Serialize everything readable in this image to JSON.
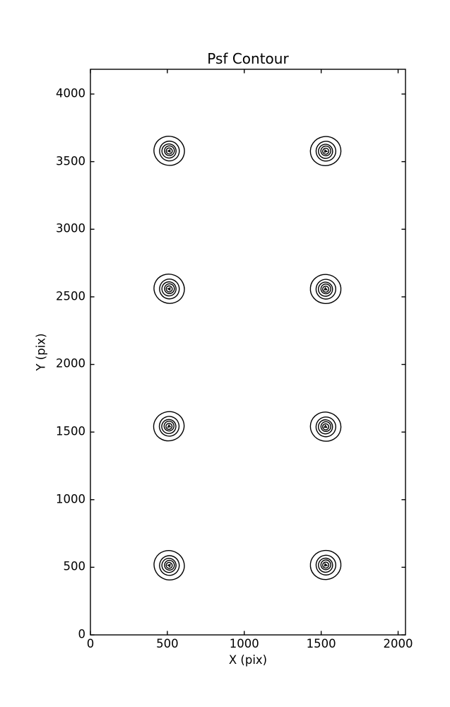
{
  "chart_data": {
    "type": "contour",
    "title": "Psf Contour",
    "xlabel": "X (pix)",
    "ylabel": "Y (pix)",
    "xlim": [
      0,
      2048
    ],
    "ylim": [
      0,
      4183
    ],
    "xticks": [
      0,
      500,
      1000,
      1500,
      2000
    ],
    "yticks": [
      0,
      500,
      1000,
      1500,
      2000,
      2500,
      3000,
      3500,
      4000
    ],
    "grid": false,
    "legend": null,
    "line_color": "#000000",
    "background_color": "#ffffff",
    "psf_centers": [
      {
        "x": 512,
        "y": 3580
      },
      {
        "x": 1529,
        "y": 3578
      },
      {
        "x": 512,
        "y": 2560
      },
      {
        "x": 1529,
        "y": 2558
      },
      {
        "x": 510,
        "y": 1543
      },
      {
        "x": 1529,
        "y": 1540
      },
      {
        "x": 512,
        "y": 515
      },
      {
        "x": 1529,
        "y": 517
      }
    ],
    "contour_levels": 6,
    "level_radii_x": [
      96,
      64,
      46,
      32,
      20,
      8
    ],
    "level_radii_y": [
      109,
      73,
      52,
      36,
      22,
      9
    ]
  }
}
